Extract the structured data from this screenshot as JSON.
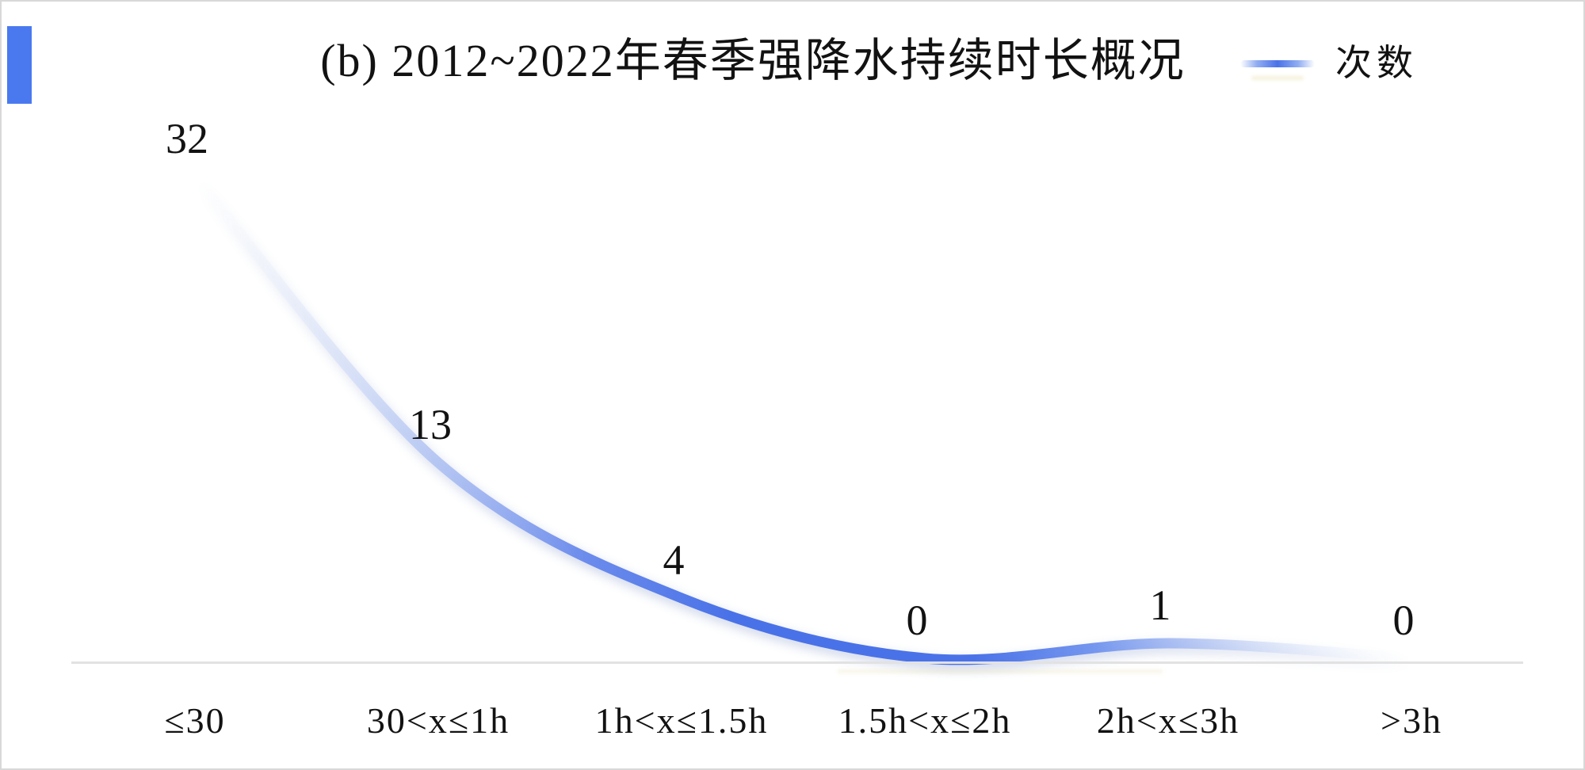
{
  "title": "(b) 2012~2022年春季强降水持续时长概况",
  "legend": {
    "label": "次数",
    "position": "top-right"
  },
  "accent_color": "#4a79ef",
  "line_color": "#4a72e8",
  "axis_color": "#e2e2e2",
  "chart_data": {
    "type": "line",
    "title": "(b) 2012~2022年春季强降水持续时长概况",
    "categories": [
      "≤30",
      "30<x≤1h",
      "1h<x≤1.5h",
      "1.5h<x≤2h",
      "2h<x≤3h",
      ">3h"
    ],
    "series": [
      {
        "name": "次数",
        "values": [
          32,
          13,
          4,
          0,
          1,
          0
        ]
      }
    ],
    "data_labels": [
      "32",
      "13",
      "4",
      "0",
      "1",
      "0"
    ],
    "xlabel": "",
    "ylabel": "",
    "ylim": [
      0,
      32
    ],
    "grid": false,
    "legend_position": "top-right",
    "style": "smooth curve, stroke fades to white at both ends, thick blue center"
  }
}
